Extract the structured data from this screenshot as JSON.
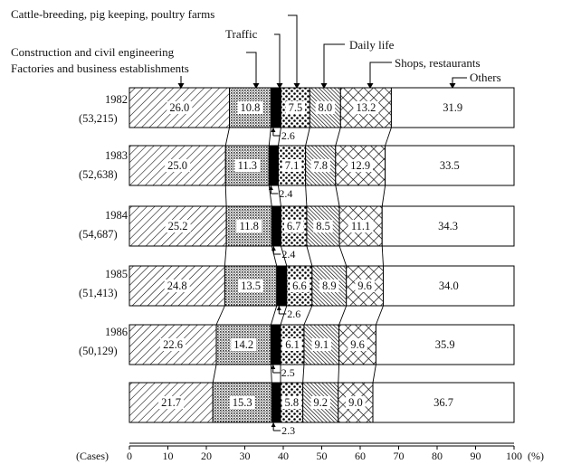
{
  "chart_data": {
    "type": "stacked-bar-horizontal",
    "categories": [
      "Factories and business establishments",
      "Construction and civil engineering",
      "Cattle-breeding, pig keeping, poultry farms",
      "Traffic",
      "Daily life",
      "Shops, restaurants",
      "Others"
    ],
    "legend_labels": [
      "Factories and business establishments",
      "Construction and civil engineering",
      "Cattle-breeding, pig keeping, poultry farms",
      "Traffic",
      "Daily life",
      "Shops, restaurants",
      "Others"
    ],
    "bars": [
      {
        "year": "1982",
        "cases": "(53,215)",
        "values": [
          26.0,
          10.8,
          2.6,
          7.5,
          8.0,
          13.2,
          31.9
        ],
        "labels": [
          "26.0",
          "10.8",
          "2.6",
          "7.5",
          "8.0",
          "13.2",
          "31.9"
        ]
      },
      {
        "year": "1983",
        "cases": "(52,638)",
        "values": [
          25.0,
          11.3,
          2.4,
          7.1,
          7.8,
          12.9,
          33.5
        ],
        "labels": [
          "25.0",
          "11.3",
          "2.4",
          "7.1",
          "7.8",
          "12.9",
          "33.5"
        ]
      },
      {
        "year": "1984",
        "cases": "(54,687)",
        "values": [
          25.2,
          11.8,
          2.4,
          6.7,
          8.5,
          11.1,
          34.3
        ],
        "labels": [
          "25.2",
          "11.8",
          "2.4",
          "6.7",
          "8.5",
          "11.1",
          "34.3"
        ]
      },
      {
        "year": "1985",
        "cases": "(51,413)",
        "values": [
          24.8,
          13.5,
          2.6,
          6.6,
          8.9,
          9.6,
          34.0
        ],
        "labels": [
          "24.8",
          "13.5",
          "2.6",
          "6.6",
          "8.9",
          "9.6",
          "34.0"
        ]
      },
      {
        "year": "1986",
        "cases": "(50,129)",
        "values": [
          22.6,
          14.2,
          2.5,
          6.1,
          9.1,
          9.6,
          35.9
        ],
        "labels": [
          "22.6",
          "14.2",
          "2.5",
          "6.1",
          "9.1",
          "9.6",
          "35.9"
        ]
      },
      {
        "year": "",
        "cases": "",
        "values": [
          21.7,
          15.3,
          2.3,
          5.8,
          9.2,
          9.0,
          36.7
        ],
        "labels": [
          "21.7",
          "15.3",
          "2.3",
          "5.8",
          "9.2",
          "9.0",
          "36.7"
        ]
      }
    ],
    "x_ticks": [
      "0",
      "10",
      "20",
      "30",
      "40",
      "50",
      "60",
      "70",
      "80",
      "90",
      "100"
    ],
    "xlim": [
      0,
      100
    ],
    "x_unit": "(%)",
    "y_axis_label": "(Cases)"
  }
}
